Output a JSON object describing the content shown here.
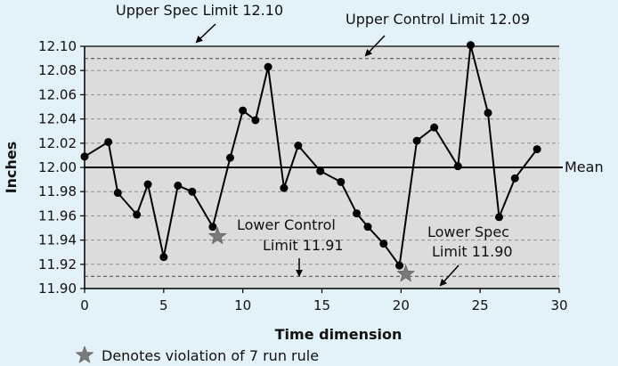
{
  "colors": {
    "background": "#e3f1f9",
    "plot_area": "#dcdcdc",
    "line": "#000000",
    "star": "#7a7a7a",
    "dashed": "#8c8c8c"
  },
  "annotations": {
    "usl": "Upper Spec Limit 12.10",
    "ucl": "Upper Control Limit 12.09",
    "mean": "Mean",
    "lcl_line1": "Lower Control",
    "lcl_line2": "Limit 11.91",
    "lsl_line1": "Lower Spec",
    "lsl_line2": "Limit 11.90",
    "legend": "Denotes violation of 7 run rule"
  },
  "chart_data": {
    "type": "line",
    "title": "",
    "xlabel": "Time dimension",
    "ylabel": "Inches",
    "xlim": [
      0,
      30
    ],
    "ylim": [
      11.9,
      12.1
    ],
    "xticks": [
      "0",
      "5",
      "10",
      "15",
      "20",
      "25",
      "30"
    ],
    "yticks": [
      "11.90",
      "11.92",
      "11.94",
      "11.96",
      "11.98",
      "12.00",
      "12.02",
      "12.04",
      "12.06",
      "12.08",
      "12.10"
    ],
    "grid": "horizontal dashed",
    "mean": 12.0,
    "upper_spec_limit": 12.1,
    "upper_control_limit": 12.09,
    "lower_control_limit": 11.91,
    "lower_spec_limit": 11.9,
    "series": [
      {
        "x": [
          0,
          1.5,
          2.1,
          3.3,
          4.0,
          5.0,
          5.9,
          6.8,
          8.1,
          9.2,
          10.0,
          10.8,
          11.6,
          12.6,
          13.5,
          14.9,
          16.2,
          17.2,
          17.9,
          18.9,
          19.9,
          21.0,
          22.1,
          23.6,
          24.4,
          25.5,
          26.2,
          27.2,
          28.6
        ],
        "y": [
          12.009,
          12.021,
          11.979,
          11.961,
          11.986,
          11.926,
          11.985,
          11.98,
          11.951,
          12.008,
          12.047,
          12.039,
          12.083,
          11.983,
          12.018,
          11.997,
          11.988,
          11.962,
          11.951,
          11.937,
          11.919,
          12.022,
          12.033,
          12.001,
          12.101,
          12.045,
          11.959,
          11.991,
          12.015
        ]
      }
    ],
    "violation_markers": [
      {
        "x": 8.4,
        "y": 11.943
      },
      {
        "x": 20.3,
        "y": 11.912
      }
    ]
  }
}
